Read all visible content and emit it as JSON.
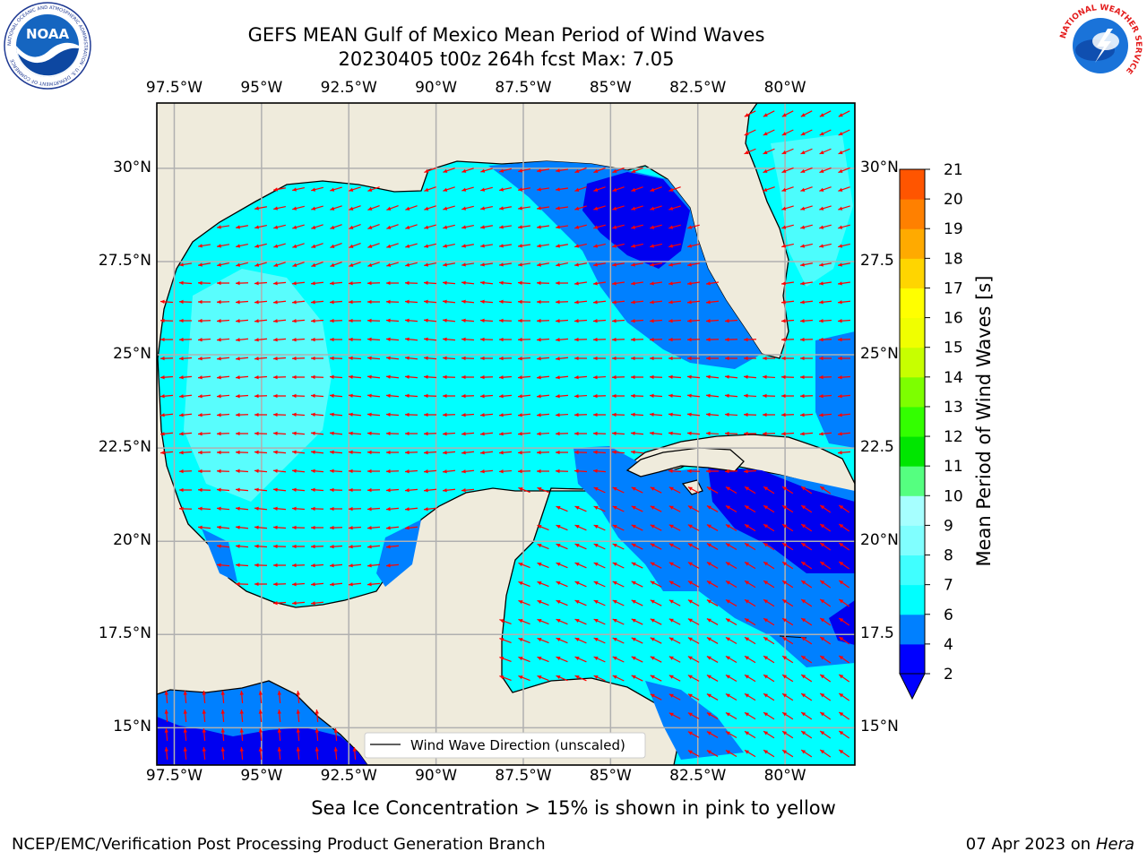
{
  "header": {
    "title_line1": "GEFS MEAN Gulf of Mexico Mean Period of Wind Waves",
    "title_line2": "20230405 t00z 264h fcst   Max: 7.05"
  },
  "logos": {
    "left": "NOAA",
    "left_ring": "NATIONAL OCEANIC AND ATMOSPHERIC ADMINISTRATION · U.S. DEPARTMENT OF COMMERCE",
    "right_ring": "NATIONAL WEATHER SERVICE"
  },
  "map": {
    "lon_labels": [
      "97.5°W",
      "95°W",
      "92.5°W",
      "90°W",
      "87.5°W",
      "85°W",
      "82.5°W",
      "80°W"
    ],
    "lat_labels_left": [
      "30°N",
      "27.5°N",
      "25°N",
      "22.5°N",
      "20°N",
      "17.5°N",
      "15°N"
    ],
    "lat_labels_right": [
      "30°N",
      "27.5",
      "25°N",
      "22.5",
      "20°N",
      "17.5",
      "15°N"
    ],
    "legend_label": "Wind Wave Direction (unscaled)",
    "land_color": "#efebdc",
    "arrow_color": "#ff0000"
  },
  "colorbar": {
    "label": "Mean Period of Wind Waves [s]",
    "ticks": [
      "2",
      "4",
      "6",
      "7",
      "8",
      "9",
      "10",
      "11",
      "12",
      "13",
      "14",
      "15",
      "16",
      "17",
      "18",
      "19",
      "20",
      "21"
    ],
    "colors": [
      "#0000ff",
      "#0080ff",
      "#00ffff",
      "#40ffff",
      "#80ffff",
      "#a6ffff",
      "#55ff80",
      "#00e600",
      "#33ff00",
      "#7dff00",
      "#c7ff00",
      "#f0ff00",
      "#ffff00",
      "#ffd500",
      "#ffaa00",
      "#ff8000",
      "#ff5500",
      "#ff2a00",
      "#ff0000"
    ],
    "under_color": "#0000ff"
  },
  "chart_data": {
    "type": "heatmap",
    "title": "GEFS MEAN Gulf of Mexico Mean Period of Wind Waves",
    "subtitle": "20230405 t00z 264h fcst   Max: 7.05",
    "xlim": [
      -98,
      -78
    ],
    "ylim": [
      14,
      31.75
    ],
    "x_ticks": [
      -97.5,
      -95,
      -92.5,
      -90,
      -87.5,
      -85,
      -82.5,
      -80
    ],
    "y_ticks": [
      15,
      17.5,
      20,
      22.5,
      25,
      27.5,
      30
    ],
    "colorbar_label": "Mean Period of Wind Waves [s]",
    "colorbar_range": [
      2,
      21
    ],
    "max_value": 7.05,
    "grid": true,
    "legend": "lower-center",
    "annotations": [
      "Sea Ice Concentration > 15% is shown in pink to yellow"
    ]
  },
  "footer": {
    "note": "Sea Ice Concentration > 15% is shown in pink to yellow",
    "credit": "NCEP/EMC/Verification Post Processing Product Generation Branch",
    "date": "07 Apr 2023 on ",
    "machine": "Hera"
  }
}
